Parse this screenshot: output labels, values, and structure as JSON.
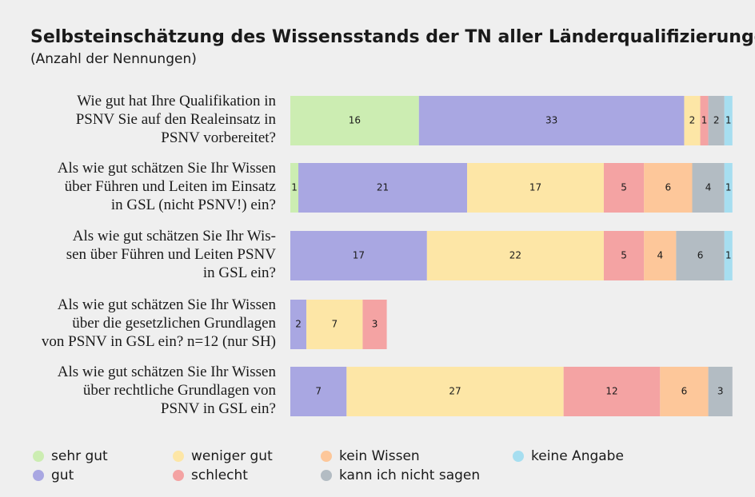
{
  "chart_data": {
    "type": "stacked-bar-horizontal",
    "title": "Selbsteinschätzung des Wissensstands der TN aller Länderqualifizierungen",
    "subtitle": "(Anzahl der Nennungen)",
    "categories": [
      "Wie gut hat Ihre Qualifikation in\nPSNV Sie auf den Realeinsatz in\nPSNV vorbereitet?",
      "Als wie gut schätzen Sie Ihr Wissen\nüber Führen und Leiten im Einsatz\nin GSL (nicht PSNV!) ein?",
      "Als wie gut schätzen Sie Ihr Wis-\nsen über Führen und Leiten PSNV\nin GSL ein?",
      "Als wie gut schätzen Sie Ihr Wissen\nüber die gesetzlichen Grundlagen\nvon PSNV in GSL ein? n=12 (nur SH)",
      "Als wie gut schätzen Sie Ihr Wissen\nüber rechtliche Grundlagen von\nPSNV in GSL ein?"
    ],
    "series": [
      {
        "name": "sehr gut",
        "color": "#ccedb2",
        "values": [
          16,
          1,
          null,
          null,
          null
        ]
      },
      {
        "name": "gut",
        "color": "#a9a7e2",
        "values": [
          33,
          21,
          17,
          2,
          7
        ]
      },
      {
        "name": "weniger gut",
        "color": "#fde6a6",
        "values": [
          2,
          17,
          22,
          7,
          27
        ]
      },
      {
        "name": "schlecht",
        "color": "#f4a3a3",
        "values": [
          1,
          5,
          5,
          3,
          12
        ]
      },
      {
        "name": "kein Wissen",
        "color": "#fdc79a",
        "values": [
          null,
          6,
          4,
          null,
          6
        ]
      },
      {
        "name": "kann ich nicht sagen",
        "color": "#b3bcc3",
        "values": [
          2,
          4,
          6,
          null,
          3
        ]
      },
      {
        "name": "keine Angabe",
        "color": "#a6def0",
        "values": [
          1,
          1,
          1,
          null,
          null
        ]
      }
    ]
  }
}
